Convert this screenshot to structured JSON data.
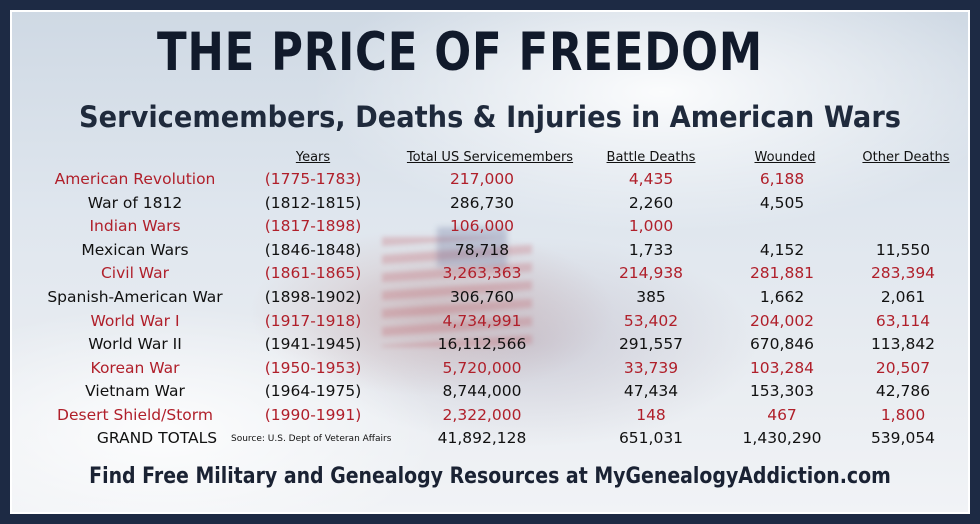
{
  "title": "THE PRICE OF FREEDOM",
  "subtitle": "Servicemembers, Deaths & Injuries in American Wars",
  "headers": {
    "years": "Years",
    "total": "Total US Servicemembers",
    "battle": "Battle Deaths",
    "wounded": "Wounded",
    "other": "Other Deaths"
  },
  "rows": [
    {
      "war": "American Revolution",
      "years": "(1775-1783)",
      "total": "217,000",
      "battle": "4,435",
      "wounded": "6,188",
      "other": ""
    },
    {
      "war": "War of 1812",
      "years": "(1812-1815)",
      "total": "286,730",
      "battle": "2,260",
      "wounded": "4,505",
      "other": ""
    },
    {
      "war": "Indian Wars",
      "years": "(1817-1898)",
      "total": "106,000",
      "battle": "1,000",
      "wounded": "",
      "other": ""
    },
    {
      "war": "Mexican Wars",
      "years": "(1846-1848)",
      "total": "78,718",
      "battle": "1,733",
      "wounded": "4,152",
      "other": "11,550"
    },
    {
      "war": "Civil War",
      "years": "(1861-1865)",
      "total": "3,263,363",
      "battle": "214,938",
      "wounded": "281,881",
      "other": "283,394"
    },
    {
      "war": "Spanish-American War",
      "years": "(1898-1902)",
      "total": "306,760",
      "battle": "385",
      "wounded": "1,662",
      "other": "2,061"
    },
    {
      "war": "World War I",
      "years": "(1917-1918)",
      "total": "4,734,991",
      "battle": "53,402",
      "wounded": "204,002",
      "other": "63,114"
    },
    {
      "war": "World War II",
      "years": "(1941-1945)",
      "total": "16,112,566",
      "battle": "291,557",
      "wounded": "670,846",
      "other": "113,842"
    },
    {
      "war": "Korean War",
      "years": "(1950-1953)",
      "total": "5,720,000",
      "battle": "33,739",
      "wounded": "103,284",
      "other": "20,507"
    },
    {
      "war": "Vietnam War",
      "years": "(1964-1975)",
      "total": "8,744,000",
      "battle": "47,434",
      "wounded": "153,303",
      "other": "42,786"
    },
    {
      "war": "Desert Shield/Storm",
      "years": "(1990-1991)",
      "total": "2,322,000",
      "battle": "148",
      "wounded": "467",
      "other": "1,800"
    }
  ],
  "totals": {
    "label": "GRAND TOTALS",
    "total": "41,892,128",
    "battle": "651,031",
    "wounded": "1,430,290",
    "other": "539,054"
  },
  "source": "Source: U.S. Dept of Veteran Affairs",
  "footer": "Find Free Military and Genealogy Resources at MyGenealogyAddiction.com",
  "colors": {
    "highlight_red": "#b01f2a",
    "text_dark": "#111111",
    "frame": "#1d2a44"
  }
}
